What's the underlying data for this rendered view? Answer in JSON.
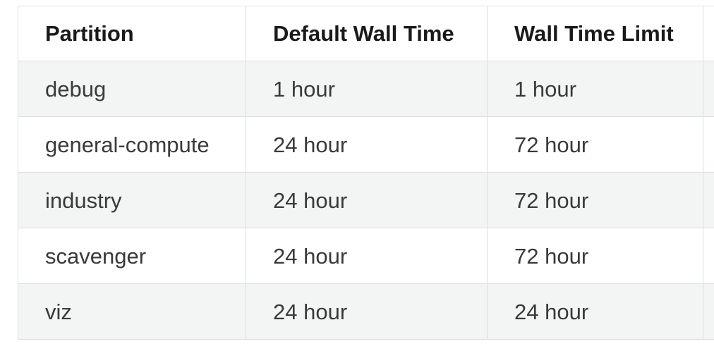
{
  "table": {
    "headers": [
      "Partition",
      "Default Wall Time",
      "Wall Time Limit"
    ],
    "rows": [
      [
        "debug",
        "1 hour",
        "1 hour"
      ],
      [
        "general-compute",
        "24 hour",
        "72 hour"
      ],
      [
        "industry",
        "24 hour",
        "72 hour"
      ],
      [
        "scavenger",
        "24 hour",
        "72 hour"
      ],
      [
        "viz",
        "24 hour",
        "24 hour"
      ]
    ]
  }
}
